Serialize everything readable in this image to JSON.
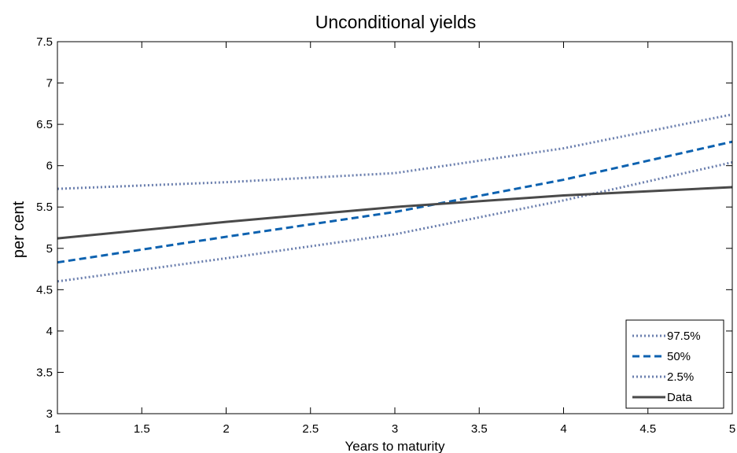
{
  "chart_data": {
    "type": "line",
    "title": "Unconditional yields",
    "xlabel": "Years to maturity",
    "ylabel": "per cent",
    "xlim": [
      1,
      5
    ],
    "ylim": [
      3,
      7.5
    ],
    "xticks": [
      "1",
      "1.5",
      "2",
      "2.5",
      "3",
      "3.5",
      "4",
      "4.5",
      "5"
    ],
    "yticks": [
      "3",
      "3.5",
      "4",
      "4.5",
      "5",
      "5.5",
      "6",
      "6.5",
      "7",
      "7.5"
    ],
    "grid": false,
    "legend_position": "bottom-right",
    "x": [
      1,
      2,
      3,
      4,
      5
    ],
    "series": [
      {
        "name": "97.5%",
        "values": [
          5.72,
          5.8,
          5.91,
          6.21,
          6.62
        ],
        "color": "#6b7fae",
        "style": "dotted"
      },
      {
        "name": "50%",
        "values": [
          4.83,
          5.14,
          5.44,
          5.83,
          6.29
        ],
        "color": "#0d62b0",
        "style": "dashed"
      },
      {
        "name": "2.5%",
        "values": [
          4.6,
          4.88,
          5.17,
          5.58,
          6.04
        ],
        "color": "#6b7fae",
        "style": "dotted"
      },
      {
        "name": "Data",
        "values": [
          5.12,
          5.32,
          5.5,
          5.64,
          5.74
        ],
        "color": "#4a4a4a",
        "style": "solid"
      }
    ]
  }
}
